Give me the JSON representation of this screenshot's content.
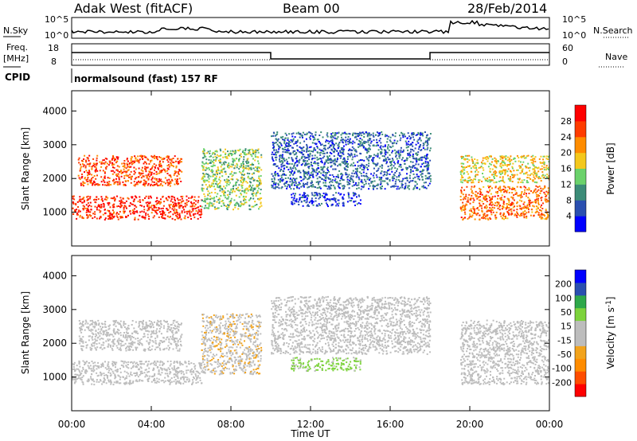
{
  "header": {
    "station": "Adak West (fitACF)",
    "beam": "Beam 00",
    "date": "28/Feb/2014"
  },
  "noise_panel": {
    "left_label": "N.Sky",
    "right_label": "N.Search",
    "left_ticks": [
      "10^5",
      "10^0"
    ],
    "right_ticks": [
      "10^5",
      "10^0"
    ]
  },
  "freq_panel": {
    "left_label_1": "Freq.",
    "left_label_2": "[MHz]",
    "right_label": "Nave",
    "left_ticks": [
      "18",
      "8"
    ],
    "right_ticks": [
      "60",
      "0"
    ]
  },
  "cpid": {
    "label": "CPID",
    "text": "normalsound (fast) 157 RF"
  },
  "colors": {
    "power": [
      "#0000ff",
      "#2a4fb0",
      "#3c8c78",
      "#6bd26b",
      "#f4c81c",
      "#ff8c00",
      "#ff3c00",
      "#ff0000"
    ],
    "velocity": [
      "#ff0000",
      "#ff4d00",
      "#ff8c00",
      "#f2a31c",
      "#bdbdbd",
      "#bdbdbd",
      "#7dd33c",
      "#2ea84a",
      "#2a4fb0",
      "#0000ff"
    ]
  },
  "chart_data": [
    {
      "type": "heatmap",
      "name": "power",
      "ylabel": "Slant Range [km]",
      "yticks": [
        "1000",
        "2000",
        "3000",
        "4000"
      ],
      "ylim": [
        0,
        4600
      ],
      "xlim": [
        0,
        24
      ],
      "xtick_labels": [
        "00:00",
        "04:00",
        "08:00",
        "12:00",
        "16:00",
        "20:00",
        "00:00"
      ],
      "colorbar": {
        "label": "Power [dB]",
        "tick_labels": [
          "4",
          "8",
          "12",
          "16",
          "20",
          "24",
          "28"
        ],
        "range": [
          0,
          32
        ]
      },
      "bands": [
        {
          "t": [
            0.0,
            6.5
          ],
          "range_km": [
            800,
            1500
          ],
          "value": 28
        },
        {
          "t": [
            0.3,
            5.5
          ],
          "range_km": [
            1800,
            2700
          ],
          "value": 26
        },
        {
          "t": [
            6.5,
            9.5
          ],
          "range_km": [
            1100,
            2900
          ],
          "value": 14
        },
        {
          "t": [
            10.0,
            18.0
          ],
          "range_km": [
            1700,
            3400
          ],
          "value": 7
        },
        {
          "t": [
            11.0,
            14.5
          ],
          "range_km": [
            1200,
            1600
          ],
          "value": 4
        },
        {
          "t": [
            19.5,
            24.0
          ],
          "range_km": [
            800,
            1800
          ],
          "value": 24
        },
        {
          "t": [
            19.5,
            24.0
          ],
          "range_km": [
            1900,
            2700
          ],
          "value": 18
        }
      ]
    },
    {
      "type": "heatmap",
      "name": "velocity",
      "ylabel": "Slant Range [km]",
      "yticks": [
        "1000",
        "2000",
        "3000",
        "4000"
      ],
      "ylim": [
        0,
        4600
      ],
      "xlim": [
        0,
        24
      ],
      "xtick_labels": [
        "00:00",
        "04:00",
        "08:00",
        "12:00",
        "16:00",
        "20:00",
        "00:00"
      ],
      "xlabel": "Time UT",
      "colorbar": {
        "label": "Velocity [m s-1]",
        "tick_labels": [
          "-200",
          "-100",
          "-50",
          "-15",
          "15",
          "50",
          "100",
          "200"
        ],
        "range": [
          -250,
          250
        ]
      },
      "bands": [
        {
          "t": [
            0.0,
            6.5
          ],
          "range_km": [
            800,
            1500
          ],
          "value": 0
        },
        {
          "t": [
            0.3,
            5.5
          ],
          "range_km": [
            1800,
            2700
          ],
          "value": 0
        },
        {
          "t": [
            6.5,
            9.5
          ],
          "range_km": [
            1100,
            2900
          ],
          "value": -40
        },
        {
          "t": [
            10.0,
            18.0
          ],
          "range_km": [
            1700,
            3400
          ],
          "value": 0
        },
        {
          "t": [
            11.0,
            14.5
          ],
          "range_km": [
            1200,
            1600
          ],
          "value": 60
        },
        {
          "t": [
            19.5,
            24.0
          ],
          "range_km": [
            800,
            2700
          ],
          "value": 0
        }
      ]
    }
  ]
}
